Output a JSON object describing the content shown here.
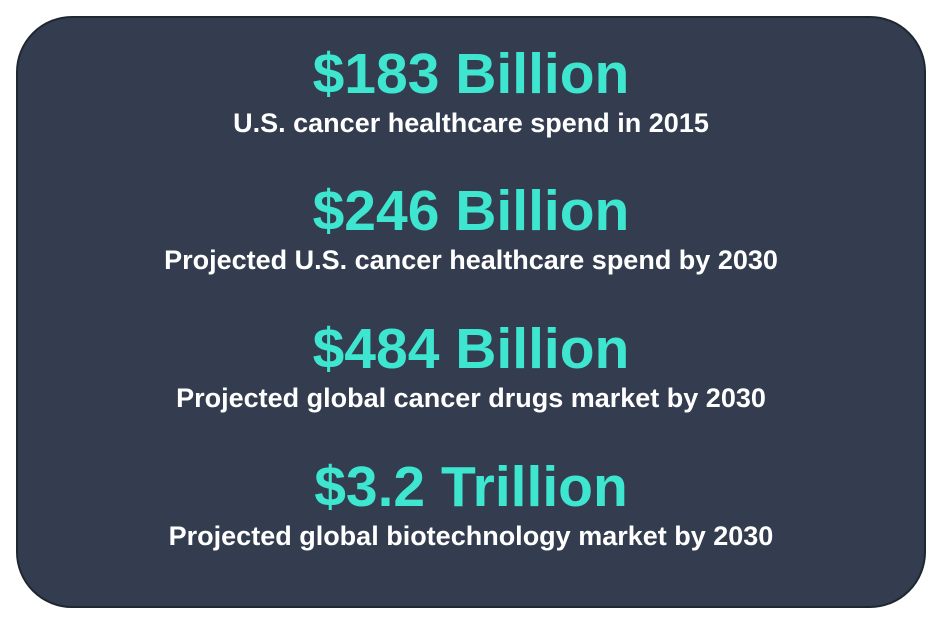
{
  "stats": [
    {
      "value": "$183 Billion",
      "label": "U.S. cancer healthcare spend in 2015"
    },
    {
      "value": "$246 Billion",
      "label": "Projected U.S. cancer healthcare spend by 2030"
    },
    {
      "value": "$484 Billion",
      "label": "Projected global cancer drugs market by 2030"
    },
    {
      "value": "$3.2 Trillion",
      "label": "Projected global biotechnology market by 2030"
    }
  ],
  "colors": {
    "card_background": "#333d4f",
    "value_text": "#3ee6cf",
    "label_text": "#ffffff"
  }
}
